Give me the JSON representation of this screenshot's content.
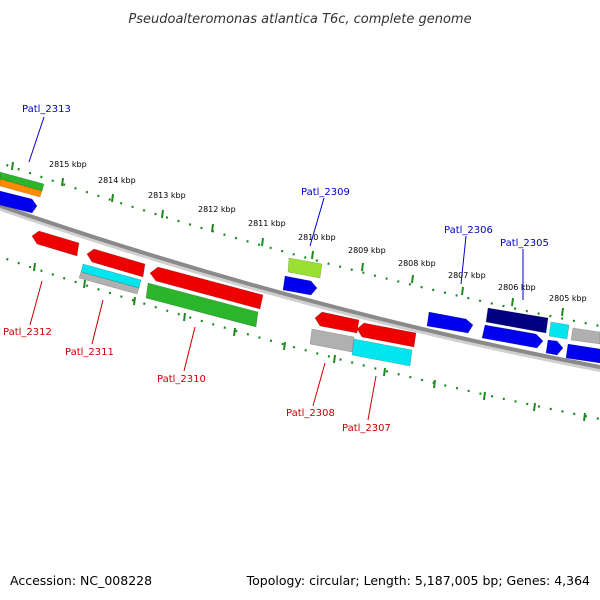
{
  "title": "Pseudoalteromonas atlantica T6c, complete genome",
  "accession": "Accession: NC_008228",
  "summary": "Topology: circular; Length: 5,187,005 bp; Genes: 4,364",
  "colors": {
    "backbone": "#8a8a8a",
    "tick": "#1e8a1e",
    "forward_label": "#0000cc",
    "reverse_label": "#cc0000"
  },
  "kbp_labels": [
    "2815 kbp",
    "2814 kbp",
    "2813 kbp",
    "2812 kbp",
    "2811 kbp",
    "2810 kbp",
    "2809 kbp",
    "2808 kbp",
    "2807 kbp",
    "2806 kbp",
    "2805 kbp"
  ],
  "forward_genes": [
    {
      "label": "Patl_2313",
      "color": "#2bb52b"
    },
    {
      "label": "",
      "color": "#ff8c00"
    },
    {
      "label": "",
      "color": "#0000ee"
    },
    {
      "label": "Patl_2309",
      "color": "#99e033"
    },
    {
      "label": "",
      "color": "#0000ee"
    },
    {
      "label": "",
      "color": "#0000ee"
    },
    {
      "label": "Patl_2306",
      "color": "#000080"
    },
    {
      "label": "Patl_2305",
      "color": "#0000ee"
    },
    {
      "label": "",
      "color": "#00e5ee"
    },
    {
      "label": "",
      "color": "#0000ee"
    },
    {
      "label": "",
      "color": "#b0b0b0"
    },
    {
      "label": "",
      "color": "#0000ee"
    }
  ],
  "reverse_genes": [
    {
      "label": "Patl_2312",
      "color": "#ee0000"
    },
    {
      "label": "",
      "color": "#ee0000"
    },
    {
      "label": "",
      "color": "#00e5ee"
    },
    {
      "label": "Patl_2311",
      "color": "#b0b0b0"
    },
    {
      "label": "",
      "color": "#ee0000"
    },
    {
      "label": "Patl_2310",
      "color": "#2bb52b"
    },
    {
      "label": "",
      "color": "#ee0000"
    },
    {
      "label": "",
      "color": "#ee0000"
    },
    {
      "label": "Patl_2308",
      "color": "#b0b0b0"
    },
    {
      "label": "Patl_2307",
      "color": "#00e5ee"
    }
  ]
}
